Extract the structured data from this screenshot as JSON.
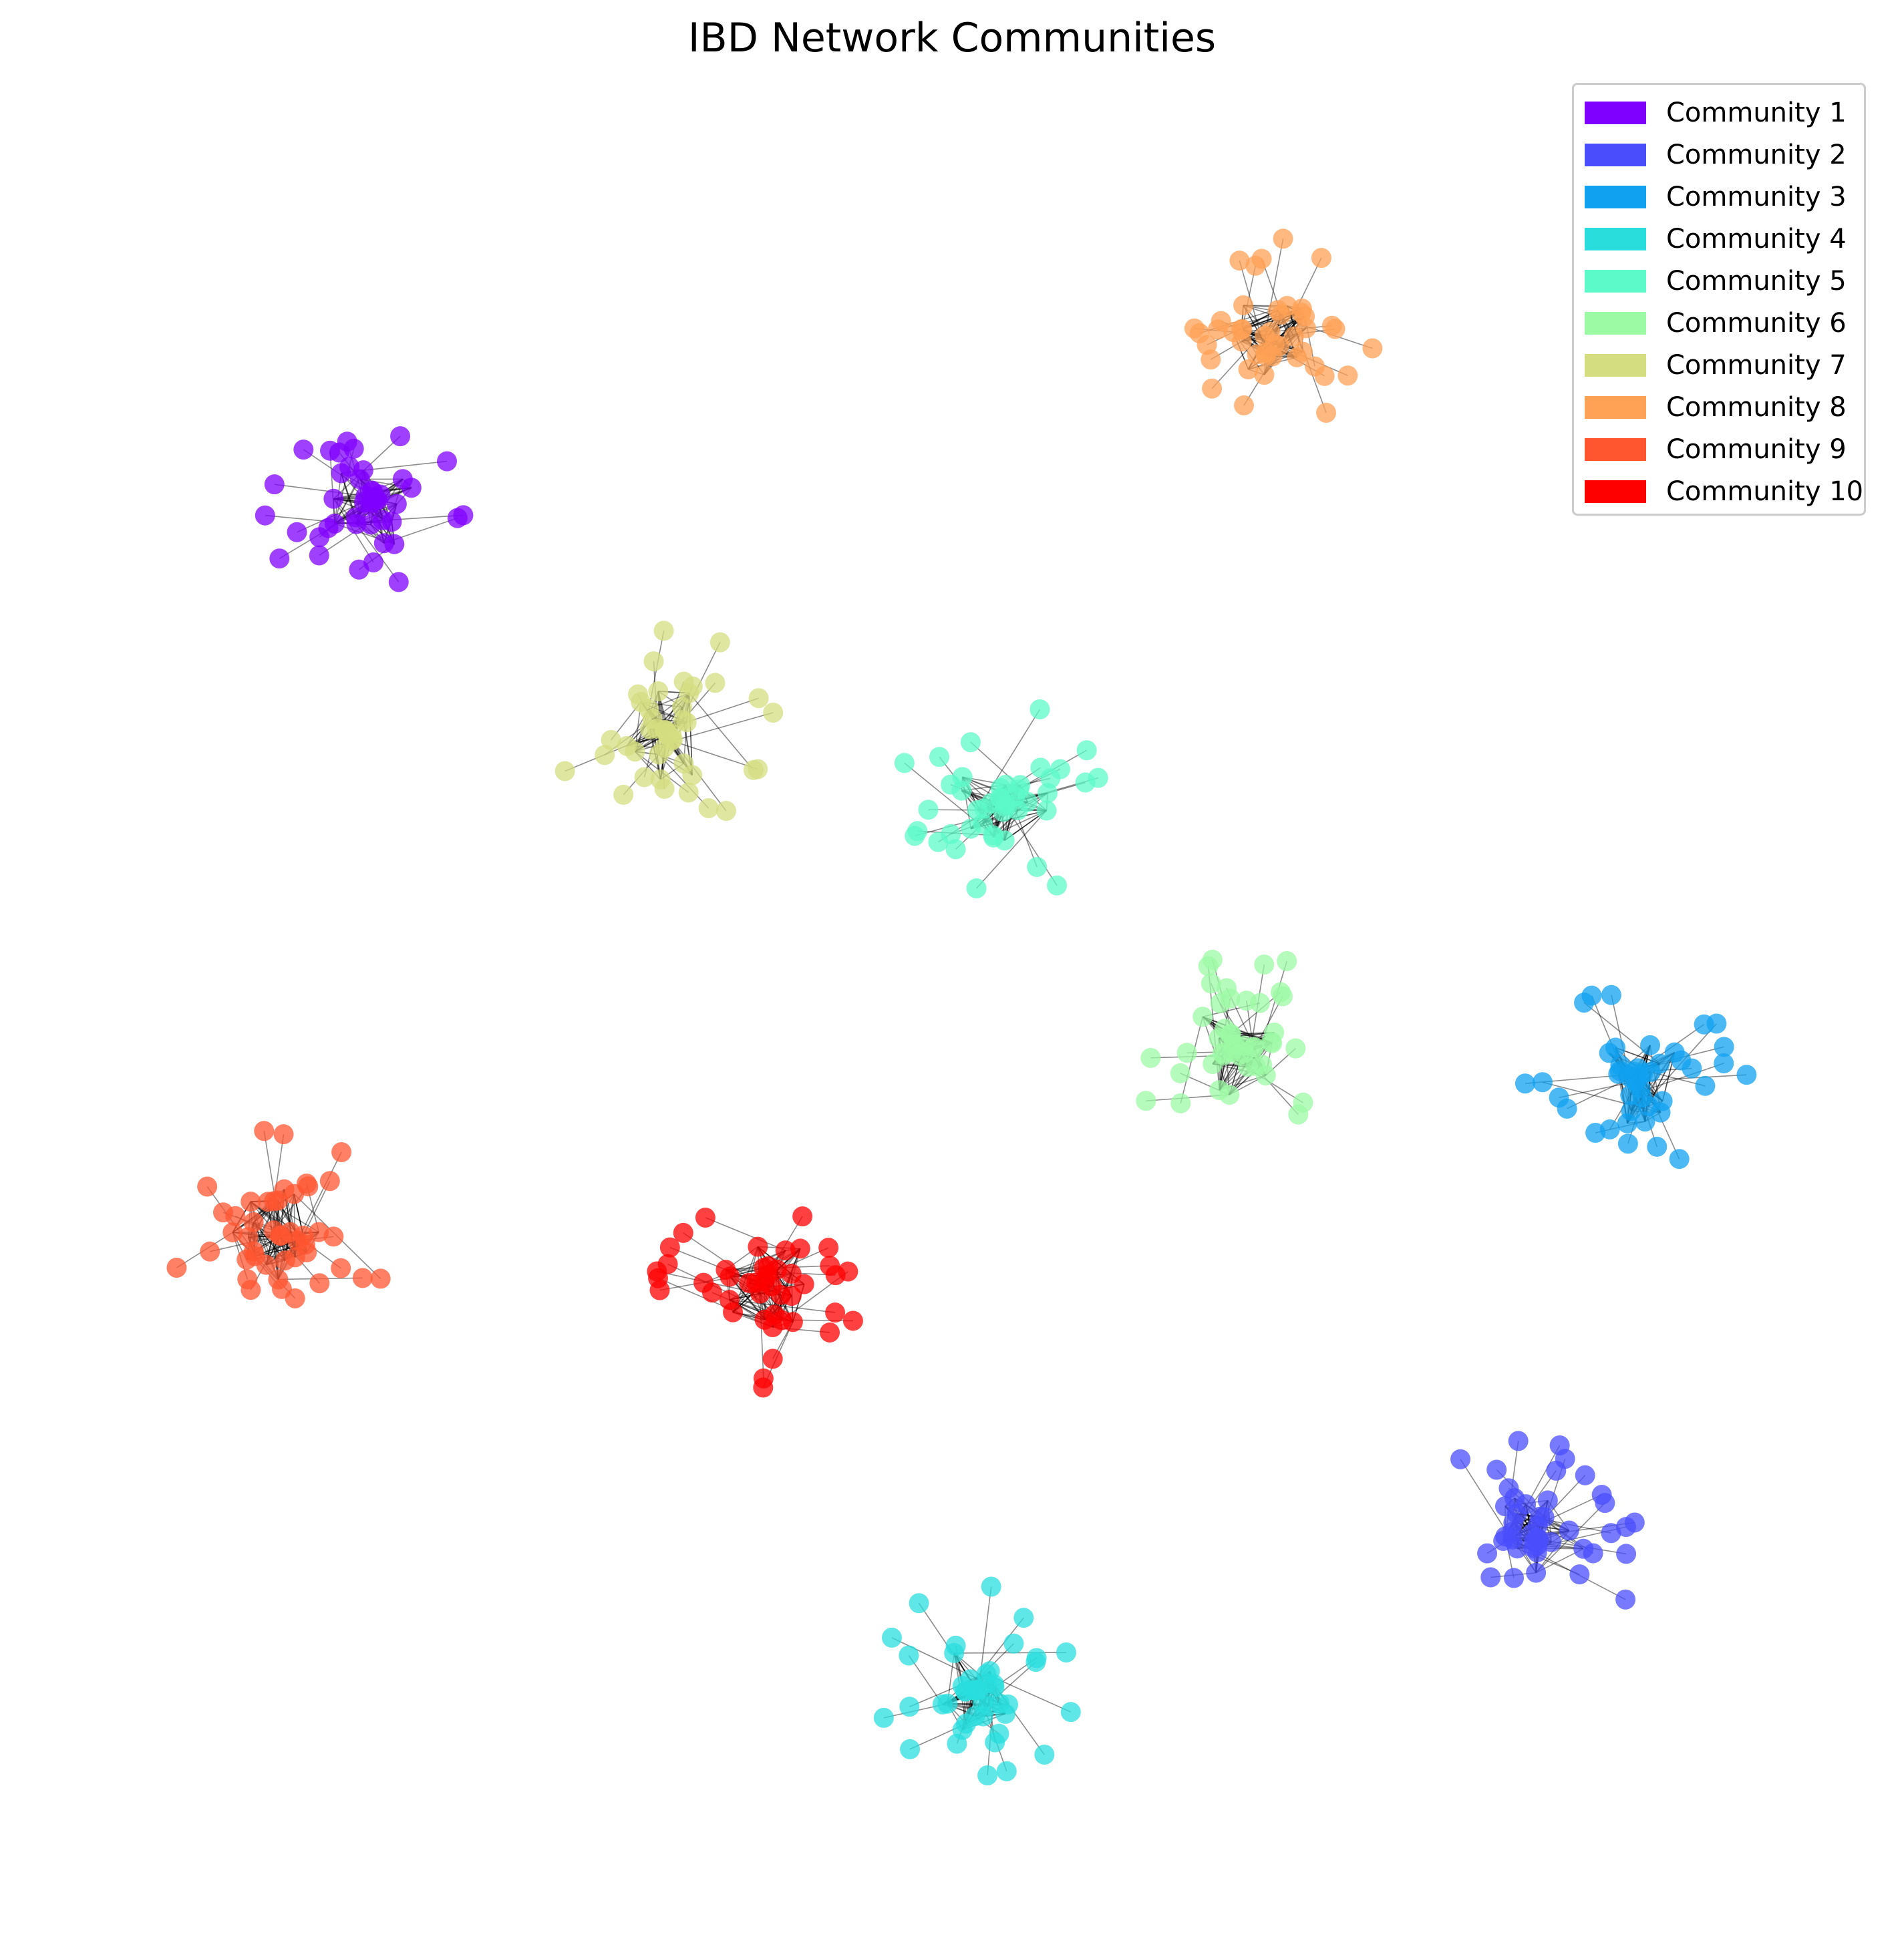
{
  "title": "IBD Network Communities",
  "communities": [
    {
      "name": "Community 1",
      "color": "#8000ff"
    },
    {
      "name": "Community 2",
      "color": "#4a4dfc"
    },
    {
      "name": "Community 3",
      "color": "#10a2f0"
    },
    {
      "name": "Community 4",
      "color": "#2adddd"
    },
    {
      "name": "Community 5",
      "color": "#5cfac8"
    },
    {
      "name": "Community 6",
      "color": "#9cfaa4"
    },
    {
      "name": "Community 7",
      "color": "#d4dd80"
    },
    {
      "name": "Community 8",
      "color": "#ffa256"
    },
    {
      "name": "Community 9",
      "color": "#ff5630"
    },
    {
      "name": "Community 10",
      "color": "#ff0000"
    }
  ],
  "edge_color": "#000000"
}
